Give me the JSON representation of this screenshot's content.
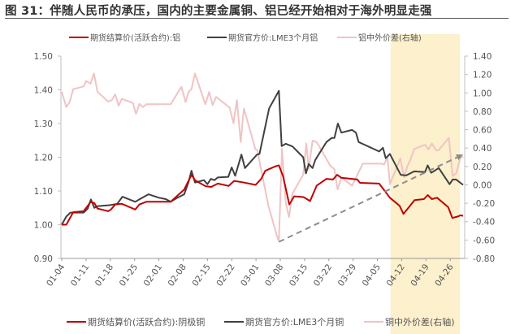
{
  "title": "图 31：伴随人民币的承压，国内的主要金属铜、铝已经开始相对于海外明显走强",
  "colors": {
    "red": "#c00000",
    "black": "#404040",
    "pink": "#efc4c4",
    "highlight": "#fdf0cc",
    "arrow": "#8c8c8c",
    "axis": "#bfbfbf"
  },
  "top_legend": [
    "期货结算价(活跃合约):铝",
    "期货官方价:LME3个月铝",
    "铝中外价差(右轴)"
  ],
  "bottom_legend": [
    "期货结算价(活跃合约):阴极铜",
    "期货官方价:LME3个月铜",
    "铜中外价差(右轴)"
  ],
  "chart_data": {
    "type": "line",
    "x_unit": "days since 01-04",
    "x_ticks": [
      "01-04",
      "01-11",
      "01-18",
      "01-25",
      "02-01",
      "02-08",
      "02-15",
      "02-22",
      "03-01",
      "03-08",
      "03-15",
      "03-22",
      "03-29",
      "04-05",
      "04-12",
      "04-19",
      "04-26"
    ],
    "x_range": [
      0,
      116
    ],
    "ylim_left": [
      0.9,
      1.5
    ],
    "yticks_left": [
      "0.90",
      "1.00",
      "1.10",
      "1.20",
      "1.30",
      "1.40",
      "1.50"
    ],
    "ylim_right": [
      -0.8,
      1.4
    ],
    "yticks_right": [
      "-0.80",
      "-0.60",
      "-0.40",
      "-0.20",
      "0.00",
      "0.20",
      "0.40",
      "0.60",
      "0.80",
      "1.00",
      "1.20",
      "1.40"
    ],
    "highlight_range": [
      94.8,
      114.8
    ],
    "trend_arrow": {
      "axis": "right",
      "from": [
        62.6,
        -0.62
      ],
      "to": [
        115.7,
        0.33
      ]
    },
    "series": [
      {
        "name": "期货结算价(活跃合约):阴极铜",
        "axis": "left",
        "color": "red",
        "points": [
          [
            0,
            1.0
          ],
          [
            1.3,
            1.0
          ],
          [
            3.3,
            1.037
          ],
          [
            6.3,
            1.04
          ],
          [
            8.4,
            1.068
          ],
          [
            9.4,
            1.064
          ],
          [
            10.3,
            1.048
          ],
          [
            13.4,
            1.04
          ],
          [
            14.2,
            1.045
          ],
          [
            15.4,
            1.06
          ],
          [
            17.3,
            1.062
          ],
          [
            21.2,
            1.045
          ],
          [
            22.4,
            1.06
          ],
          [
            24.4,
            1.068
          ],
          [
            31.4,
            1.068
          ],
          [
            35.3,
            1.104
          ],
          [
            37.4,
            1.148
          ],
          [
            38.4,
            1.132
          ],
          [
            41.5,
            1.114
          ],
          [
            43.1,
            1.112
          ],
          [
            45,
            1.122
          ],
          [
            48.1,
            1.115
          ],
          [
            49.7,
            1.13
          ],
          [
            52,
            1.126
          ],
          [
            55.9,
            1.118
          ],
          [
            57.5,
            1.136
          ],
          [
            58.7,
            1.16
          ],
          [
            61.8,
            1.174
          ],
          [
            62.6,
            1.176
          ],
          [
            63.8,
            1.144
          ],
          [
            65.6,
            1.06
          ],
          [
            67,
            1.084
          ],
          [
            69.7,
            1.082
          ],
          [
            71.6,
            1.07
          ],
          [
            73.5,
            1.116
          ],
          [
            76.3,
            1.136
          ],
          [
            78.2,
            1.134
          ],
          [
            79.4,
            1.148
          ],
          [
            80.6,
            1.139
          ],
          [
            85.2,
            1.134
          ],
          [
            86,
            1.124
          ],
          [
            91.5,
            1.122
          ],
          [
            94.6,
            1.08
          ],
          [
            97.4,
            1.056
          ],
          [
            98.5,
            1.032
          ],
          [
            100.1,
            1.052
          ],
          [
            101.7,
            1.073
          ],
          [
            104.4,
            1.076
          ],
          [
            105.5,
            1.088
          ],
          [
            106.7,
            1.076
          ],
          [
            108.2,
            1.08
          ],
          [
            111.4,
            1.052
          ],
          [
            112.6,
            1.02
          ],
          [
            114.1,
            1.024
          ],
          [
            115,
            1.028
          ],
          [
            115.7,
            1.026
          ]
        ]
      },
      {
        "name": "期货官方价:LME3个月铜",
        "axis": "left",
        "color": "black",
        "points": [
          [
            0,
            1.0
          ],
          [
            1.3,
            1.024
          ],
          [
            2.5,
            1.036
          ],
          [
            6.3,
            1.036
          ],
          [
            7.5,
            1.048
          ],
          [
            8.4,
            1.075
          ],
          [
            9.4,
            1.05
          ],
          [
            10.3,
            1.055
          ],
          [
            14,
            1.058
          ],
          [
            16,
            1.062
          ],
          [
            17.5,
            1.083
          ],
          [
            21.2,
            1.068
          ],
          [
            22.5,
            1.076
          ],
          [
            25,
            1.09
          ],
          [
            28,
            1.08
          ],
          [
            30,
            1.076
          ],
          [
            31.4,
            1.068
          ],
          [
            33,
            1.078
          ],
          [
            35.3,
            1.09
          ],
          [
            36.5,
            1.125
          ],
          [
            37.4,
            1.16
          ],
          [
            38.4,
            1.125
          ],
          [
            41,
            1.132
          ],
          [
            42,
            1.12
          ],
          [
            43,
            1.136
          ],
          [
            44,
            1.132
          ],
          [
            45,
            1.14
          ],
          [
            48,
            1.142
          ],
          [
            49,
            1.17
          ],
          [
            50,
            1.145
          ],
          [
            51.8,
            1.208
          ],
          [
            52.8,
            1.168
          ],
          [
            56.3,
            1.208
          ],
          [
            57,
            1.21
          ],
          [
            59.8,
            1.345
          ],
          [
            62.6,
            1.397
          ],
          [
            63.4,
            1.233
          ],
          [
            64.6,
            1.24
          ],
          [
            66.5,
            1.232
          ],
          [
            69.6,
            1.2
          ],
          [
            70.4,
            1.152
          ],
          [
            71.2,
            1.18
          ],
          [
            72.3,
            1.168
          ],
          [
            73.1,
            1.192
          ],
          [
            76.3,
            1.245
          ],
          [
            77.8,
            1.257
          ],
          [
            78.6,
            1.257
          ],
          [
            79.6,
            1.3
          ],
          [
            80.6,
            1.273
          ],
          [
            83.7,
            1.281
          ],
          [
            84.8,
            1.273
          ],
          [
            85.6,
            1.245
          ],
          [
            91.5,
            1.217
          ],
          [
            92.6,
            1.228
          ],
          [
            93.4,
            1.197
          ],
          [
            94.6,
            1.21
          ],
          [
            97.7,
            1.148
          ],
          [
            99.3,
            1.146
          ],
          [
            101.6,
            1.158
          ],
          [
            104.7,
            1.156
          ],
          [
            105.5,
            1.176
          ],
          [
            106.5,
            1.154
          ],
          [
            108.7,
            1.168
          ],
          [
            111.8,
            1.12
          ],
          [
            112.7,
            1.134
          ],
          [
            113.7,
            1.134
          ],
          [
            115.7,
            1.118
          ]
        ]
      },
      {
        "name": "铜中外价差(右轴)",
        "axis": "right",
        "color": "pink",
        "points": [
          [
            0,
            1.01
          ],
          [
            1.3,
            0.846
          ],
          [
            2.3,
            0.9
          ],
          [
            3.3,
            1.04
          ],
          [
            6.3,
            1.07
          ],
          [
            7,
            1.13
          ],
          [
            8.3,
            1.1
          ],
          [
            9.3,
            1.21
          ],
          [
            10.3,
            1.01
          ],
          [
            13.4,
            0.905
          ],
          [
            14.4,
            0.92
          ],
          [
            15.4,
            0.985
          ],
          [
            16.4,
            0.86
          ],
          [
            17.3,
            0.935
          ],
          [
            20.5,
            0.89
          ],
          [
            21.4,
            0.773
          ],
          [
            22.4,
            0.88
          ],
          [
            23.4,
            0.846
          ],
          [
            24.4,
            0.876
          ],
          [
            31.4,
            0.876
          ],
          [
            34.5,
            1.067
          ],
          [
            35.7,
            0.9
          ],
          [
            36.6,
            1.014
          ],
          [
            37.4,
            1.04
          ],
          [
            38.4,
            1.21
          ],
          [
            41.4,
            0.876
          ],
          [
            42.5,
            1.01
          ],
          [
            43.5,
            0.867
          ],
          [
            44.5,
            0.956
          ],
          [
            48.4,
            0.84
          ],
          [
            49.5,
            0.67
          ],
          [
            50.5,
            0.92
          ],
          [
            51.6,
            0.464
          ],
          [
            52.5,
            0.83
          ],
          [
            55.8,
            0.39
          ],
          [
            56.4,
            0.375
          ],
          [
            57.6,
            0.14
          ],
          [
            59.6,
            -0.23
          ],
          [
            62,
            -0.55
          ],
          [
            62.6,
            -0.61
          ],
          [
            63.5,
            0.39
          ],
          [
            64.6,
            -0.2
          ],
          [
            65.5,
            -0.35
          ],
          [
            66.5,
            -0.095
          ],
          [
            69.6,
            0.11
          ],
          [
            70.5,
            0.45
          ],
          [
            71.2,
            0.17
          ],
          [
            72.3,
            0.48
          ],
          [
            73.5,
            0.465
          ],
          [
            77.4,
            0.21
          ],
          [
            78.6,
            0.17
          ],
          [
            79.5,
            -0.05
          ],
          [
            80.6,
            0.08
          ],
          [
            83.7,
            -0.01
          ],
          [
            86.8,
            0.23
          ],
          [
            92.3,
            0.23
          ],
          [
            92.9,
            0.22
          ],
          [
            93.9,
            0.3
          ],
          [
            94.6,
            0.007
          ],
          [
            97.6,
            0.286
          ],
          [
            98.7,
            0.08
          ],
          [
            99.7,
            0.21
          ],
          [
            100.5,
            0.27
          ],
          [
            101.6,
            0.39
          ],
          [
            104.7,
            0.435
          ],
          [
            105.7,
            0.385
          ],
          [
            106.7,
            0.45
          ],
          [
            107.9,
            0.375
          ],
          [
            108.6,
            0.375
          ],
          [
            111.6,
            0.51
          ],
          [
            112.7,
            0.095
          ],
          [
            113.7,
            0.125
          ],
          [
            114.9,
            0.29
          ],
          [
            115.7,
            0.31
          ]
        ]
      }
    ]
  }
}
